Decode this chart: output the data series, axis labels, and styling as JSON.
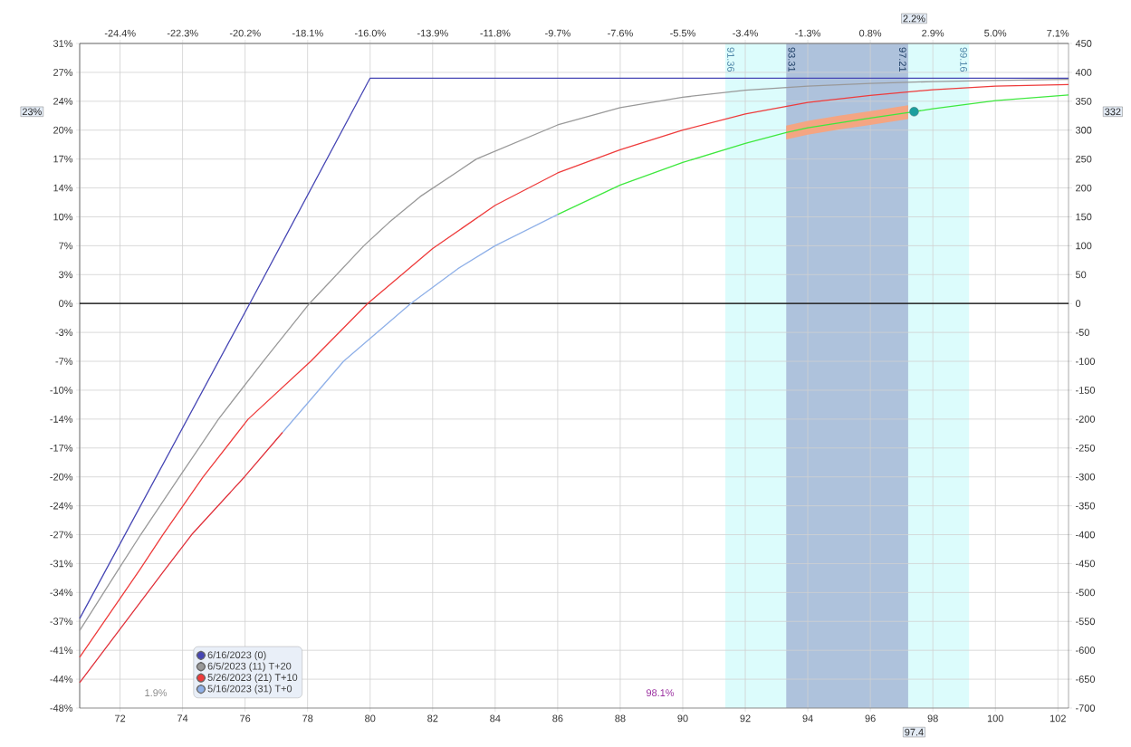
{
  "chart_data": {
    "type": "line",
    "xlim": [
      70.71,
      102.34
    ],
    "ylim": [
      -700,
      450
    ],
    "xticks": [
      72,
      74,
      76,
      78,
      80,
      82,
      84,
      86,
      88,
      90,
      92,
      94,
      96,
      98,
      100,
      102
    ],
    "yticks": [
      -700,
      -650,
      -600,
      -550,
      -500,
      -450,
      -400,
      -350,
      -300,
      -250,
      -200,
      -150,
      -100,
      -50,
      0,
      50,
      100,
      150,
      200,
      250,
      300,
      350,
      400,
      450
    ],
    "x2lim": [
      -25.76,
      7.46
    ],
    "x2ticks": [
      {
        "value": -24.4,
        "label": "-24.4%"
      },
      {
        "value": -22.3,
        "label": "-22.3%"
      },
      {
        "value": -20.2,
        "label": "-20.2%"
      },
      {
        "value": -18.1,
        "label": "-18.1%"
      },
      {
        "value": -16.0,
        "label": "-16.0%"
      },
      {
        "value": -13.9,
        "label": "-13.9%"
      },
      {
        "value": -11.8,
        "label": "-11.8%"
      },
      {
        "value": -9.7,
        "label": "-9.7%"
      },
      {
        "value": -7.6,
        "label": "-7.6%"
      },
      {
        "value": -5.5,
        "label": "-5.5%"
      },
      {
        "value": -3.4,
        "label": "-3.4%"
      },
      {
        "value": -1.3,
        "label": "-1.3%"
      },
      {
        "value": 0.8,
        "label": "0.8%"
      },
      {
        "value": 2.9,
        "label": "2.9%"
      },
      {
        "value": 5.0,
        "label": "5.0%"
      },
      {
        "value": 7.1,
        "label": "7.1%"
      }
    ],
    "y2lim": [
      -47.62,
      30.61
    ],
    "y2ticks": [
      {
        "value": -47.62,
        "label": "-48%"
      },
      {
        "value": -44.22,
        "label": "-44%"
      },
      {
        "value": -40.82,
        "label": "-41%"
      },
      {
        "value": -37.41,
        "label": "-37%"
      },
      {
        "value": -34.01,
        "label": "-34%"
      },
      {
        "value": -30.61,
        "label": "-31%"
      },
      {
        "value": -27.21,
        "label": "-27%"
      },
      {
        "value": -23.81,
        "label": "-24%"
      },
      {
        "value": -20.41,
        "label": "-20%"
      },
      {
        "value": -17.01,
        "label": "-17%"
      },
      {
        "value": -13.61,
        "label": "-14%"
      },
      {
        "value": -10.2,
        "label": "-10%"
      },
      {
        "value": -6.8,
        "label": "-7%"
      },
      {
        "value": -3.4,
        "label": "-3%"
      },
      {
        "value": 0,
        "label": "0%"
      },
      {
        "value": 3.4,
        "label": "3%"
      },
      {
        "value": 6.8,
        "label": "7%"
      },
      {
        "value": 10.2,
        "label": "10%"
      },
      {
        "value": 13.61,
        "label": "14%"
      },
      {
        "value": 17.01,
        "label": "17%"
      },
      {
        "value": 20.41,
        "label": "20%"
      },
      {
        "value": 23.81,
        "label": "24%"
      },
      {
        "value": 27.21,
        "label": "27%"
      },
      {
        "value": 30.61,
        "label": "31%"
      }
    ],
    "grid": true,
    "legend": "bottom left",
    "bands": [
      {
        "axis": "x",
        "from": 91.36,
        "to": 99.16,
        "color": "#dcfcfc"
      },
      {
        "axis": "x",
        "from": 93.31,
        "to": 97.21,
        "color": "#aec2dc"
      }
    ],
    "ref_lines": [
      {
        "axis": "y",
        "value": 0,
        "color": "#000000"
      }
    ],
    "series": [
      {
        "name": "6/16/2023 (0)",
        "color": "#4646b4",
        "x": [
          70.71,
          76.15,
          80,
          102.34
        ],
        "values": [
          -545,
          0,
          390,
          390
        ]
      },
      {
        "name": "6/5/2023 (11) T+20",
        "color": "#999999",
        "x": [
          70.71,
          71.94,
          72.66,
          73.9,
          75.15,
          76.58,
          78.06,
          79.8,
          80.6,
          81.6,
          83.4,
          86,
          88,
          90,
          92,
          94,
          96,
          98,
          100,
          102.34
        ],
        "values": [
          -566,
          -461,
          -400,
          -300,
          -200,
          -100,
          0,
          100,
          140,
          185,
          250,
          309,
          339,
          357,
          369,
          376,
          381,
          384,
          386,
          388
        ]
      },
      {
        "name": "5/26/2023 (21) T+10",
        "color": "#ee3b3b",
        "x": [
          70.71,
          72.63,
          73.37,
          74.66,
          76.1,
          78.1,
          79.92,
          82,
          84,
          86,
          88,
          90,
          92,
          94,
          96,
          98,
          100,
          102.34
        ],
        "values": [
          -612,
          -461,
          -400,
          -300,
          -200,
          -100,
          0,
          95,
          170,
          226,
          266,
          300,
          328,
          348,
          360,
          370,
          376,
          379
        ]
      },
      {
        "name": "5/16/2023 (31) T+0",
        "color": "#8fb0e8",
        "x": [
          77.2,
          79.15,
          81.3,
          82.8,
          84,
          86
        ],
        "values": [
          -223,
          -100,
          0,
          60,
          100,
          154
        ]
      },
      {
        "color": "#e0303a",
        "x": [
          70.71,
          73.43,
          74.29,
          75.98,
          77.2
        ],
        "values": [
          -656,
          -461,
          -400,
          -300,
          -223
        ]
      },
      {
        "color": "#f4a582",
        "x": [
          93.31,
          94,
          95,
          96,
          97.21
        ],
        "values": [
          null,
          null,
          null,
          null,
          null
        ],
        "lower": [
          284,
          292,
          301,
          309,
          319
        ],
        "upper": [
          308,
          316,
          325,
          333,
          343
        ]
      },
      {
        "color": "#3ee83e",
        "x": [
          86,
          88,
          90,
          92,
          93.31,
          94,
          96,
          97.4,
          98,
          100,
          102.34
        ],
        "values": [
          154,
          205,
          244,
          277,
          296,
          304,
          321,
          332,
          337,
          351,
          361
        ]
      },
      {
        "type": "scatter",
        "color": "#1b9e9e",
        "x": [
          97.4
        ],
        "values": [
          332
        ]
      }
    ],
    "annotations": [
      "98.1%",
      "1.9%",
      {
        "text": "91.36",
        "x": 91.36,
        "y": 447
      },
      {
        "text": "93.31",
        "x": 93.31,
        "y": 447
      },
      {
        "text": "97.21",
        "x": 97.21,
        "y": 447
      },
      {
        "text": "99.16",
        "x": 99.16,
        "y": 447
      },
      "97.4",
      "2.2%",
      "23%",
      "332"
    ]
  }
}
